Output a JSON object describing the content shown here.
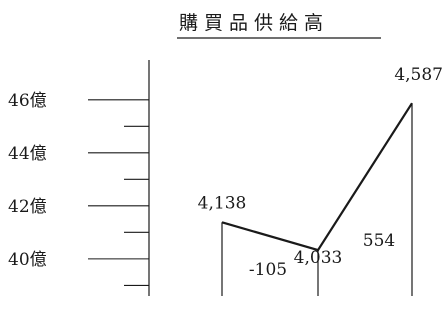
{
  "chart_data": {
    "type": "waterfall",
    "title": "購買品供給高",
    "y_unit": "億",
    "ylim": [
      38.6,
      47.5
    ],
    "y_major_ticks": [
      40,
      42,
      44,
      46
    ],
    "y_tick_labels": [
      "40億",
      "42億",
      "44億",
      "46億"
    ],
    "y_minor_ticks": [
      39,
      41,
      43,
      45
    ],
    "points": [
      {
        "value": 41.38,
        "label": "4,138"
      },
      {
        "value": 40.33,
        "label": "4,033"
      },
      {
        "value": 45.87,
        "label": "4,587"
      }
    ],
    "changes": [
      {
        "value": -105,
        "label": "-105"
      },
      {
        "value": 554,
        "label": "554"
      }
    ]
  }
}
